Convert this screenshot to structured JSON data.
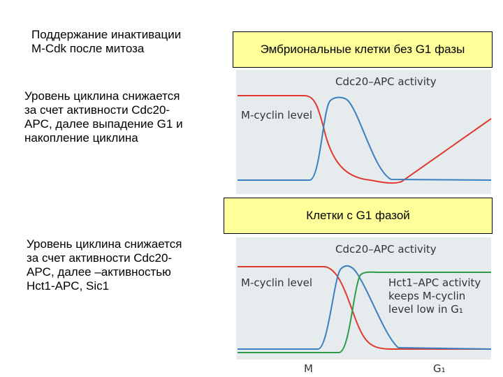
{
  "header": {
    "lines": [
      "Поддержание инактивации",
      "M-Cdk после митоза"
    ]
  },
  "panels": [
    {
      "box": "Эмбриональные клетки без G1 фазы",
      "description": [
        "Уровень циклина снижается",
        "за счет активности Cdc20-",
        "APC, далее выпадение G1 и",
        "накопление циклина"
      ],
      "diagram": {
        "labels": [
          "Cdc20–APC activity",
          "M-cyclin level"
        ]
      }
    },
    {
      "box": "Клетки с G1 фазой",
      "description": [
        "Уровень циклина снижается",
        "за счет активности Cdc20-",
        "APC, далее –активностью",
        "Hct1-APC, Sic1"
      ],
      "diagram": {
        "labels": [
          "Cdc20–APC activity",
          "M-cyclin level",
          "Hct1–APC activity",
          "keeps M-cyclin",
          "level low in G₁"
        ],
        "axis": [
          "M",
          "G₁"
        ]
      }
    }
  ]
}
